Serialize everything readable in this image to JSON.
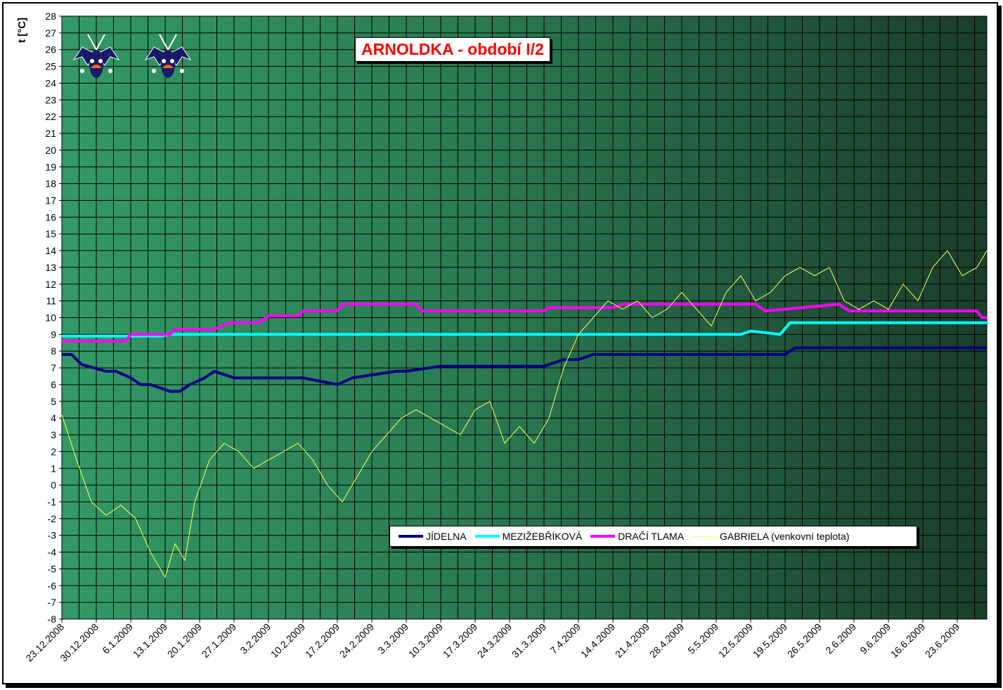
{
  "chart_data": {
    "type": "line",
    "title": "ARNOLDKA - období I/2",
    "ylabel": "t [°C]",
    "xlabel": "",
    "ylim": [
      -8,
      28
    ],
    "yticks": [
      -8,
      -7,
      -6,
      -5,
      -4,
      -3,
      -2,
      -1,
      0,
      1,
      2,
      3,
      4,
      5,
      6,
      7,
      8,
      9,
      10,
      11,
      12,
      13,
      14,
      15,
      16,
      17,
      18,
      19,
      20,
      21,
      22,
      23,
      24,
      25,
      26,
      27,
      28
    ],
    "xlim": [
      "2008-12-23",
      "2009-06-29"
    ],
    "categories": [
      "23.12.2008",
      "30.12.2008",
      "6.1.2009",
      "13.1.2009",
      "20.1.2009",
      "27.1.2009",
      "3.2.2009",
      "10.2.2009",
      "17.2.2009",
      "24.2.2009",
      "3.3.2009",
      "10.3.2009",
      "17.3.2009",
      "24.3.2009",
      "31.3.2009",
      "7.4.2009",
      "14.4.2009",
      "21.4.2009",
      "28.4.2009",
      "5.5.2009",
      "12.5.2009",
      "19.5.2009",
      "26.5.2009",
      "2.6.2009",
      "9.6.2009",
      "16.6.2009",
      "23.6.2009"
    ],
    "grid": true,
    "legend_position": "bottom-right",
    "series": [
      {
        "name": "JÍDELNA",
        "color": "#000080",
        "x": [
          "2008-12-23",
          "2008-12-25",
          "2008-12-27",
          "2009-01-01",
          "2009-01-03",
          "2009-01-06",
          "2009-01-08",
          "2009-01-10",
          "2009-01-14",
          "2009-01-16",
          "2009-01-18",
          "2009-01-21",
          "2009-01-23",
          "2009-01-27",
          "2009-02-03",
          "2009-02-10",
          "2009-02-17",
          "2009-02-20",
          "2009-03-01",
          "2009-03-03",
          "2009-03-10",
          "2009-03-31",
          "2009-04-04",
          "2009-04-07",
          "2009-04-10",
          "2009-05-01",
          "2009-05-19",
          "2009-05-21",
          "2009-06-29"
        ],
        "values": [
          7.8,
          7.8,
          7.2,
          6.8,
          6.8,
          6.4,
          6.0,
          6.0,
          5.6,
          5.6,
          6.0,
          6.4,
          6.8,
          6.4,
          6.4,
          6.4,
          6.0,
          6.4,
          6.8,
          6.8,
          7.1,
          7.1,
          7.5,
          7.5,
          7.8,
          7.8,
          7.8,
          8.2,
          8.2
        ]
      },
      {
        "name": "MEZIŽEBŘÍKOVÁ",
        "color": "#00ffff",
        "x": [
          "2008-12-23",
          "2009-01-12",
          "2009-01-14",
          "2009-05-10",
          "2009-05-12",
          "2009-05-18",
          "2009-05-20",
          "2009-06-29"
        ],
        "values": [
          8.9,
          8.9,
          9.0,
          9.0,
          9.2,
          9.0,
          9.7,
          9.7
        ]
      },
      {
        "name": "DRAČÍ TLAMA",
        "color": "#ff00ff",
        "x": [
          "2008-12-23",
          "2009-01-05",
          "2009-01-06",
          "2009-01-14",
          "2009-01-15",
          "2009-01-23",
          "2009-01-26",
          "2009-02-01",
          "2009-02-03",
          "2009-02-09",
          "2009-02-10",
          "2009-02-17",
          "2009-02-18",
          "2009-03-05",
          "2009-03-06",
          "2009-03-31",
          "2009-04-01",
          "2009-04-14",
          "2009-04-16",
          "2009-05-13",
          "2009-05-15",
          "2009-05-30",
          "2009-06-01",
          "2009-06-27",
          "2009-06-28",
          "2009-06-29"
        ],
        "values": [
          8.6,
          8.6,
          9.0,
          9.0,
          9.3,
          9.3,
          9.7,
          9.7,
          10.1,
          10.1,
          10.4,
          10.4,
          10.8,
          10.8,
          10.4,
          10.4,
          10.6,
          10.6,
          10.8,
          10.8,
          10.4,
          10.8,
          10.4,
          10.4,
          10.0,
          10.0
        ]
      },
      {
        "name": "GABRIELA (venkovní teplota)",
        "color": "#ffff66",
        "x": [
          "2008-12-23",
          "2008-12-26",
          "2008-12-29",
          "2009-01-01",
          "2009-01-04",
          "2009-01-07",
          "2009-01-10",
          "2009-01-13",
          "2009-01-15",
          "2009-01-17",
          "2009-01-19",
          "2009-01-22",
          "2009-01-25",
          "2009-01-28",
          "2009-01-31",
          "2009-02-03",
          "2009-02-06",
          "2009-02-09",
          "2009-02-12",
          "2009-02-15",
          "2009-02-18",
          "2009-02-21",
          "2009-02-24",
          "2009-02-27",
          "2009-03-02",
          "2009-03-05",
          "2009-03-08",
          "2009-03-11",
          "2009-03-14",
          "2009-03-17",
          "2009-03-20",
          "2009-03-23",
          "2009-03-26",
          "2009-03-29",
          "2009-04-01",
          "2009-04-04",
          "2009-04-07",
          "2009-04-10",
          "2009-04-13",
          "2009-04-16",
          "2009-04-19",
          "2009-04-22",
          "2009-04-25",
          "2009-04-28",
          "2009-05-01",
          "2009-05-04",
          "2009-05-07",
          "2009-05-10",
          "2009-05-13",
          "2009-05-16",
          "2009-05-19",
          "2009-05-22",
          "2009-05-25",
          "2009-05-28",
          "2009-05-31",
          "2009-06-03",
          "2009-06-06",
          "2009-06-09",
          "2009-06-12",
          "2009-06-15",
          "2009-06-18",
          "2009-06-21",
          "2009-06-24",
          "2009-06-27",
          "2009-06-29"
        ],
        "values": [
          4.2,
          1.5,
          -1.0,
          -1.8,
          -1.2,
          -2.0,
          -4.0,
          -5.5,
          -3.5,
          -4.5,
          -1.0,
          1.5,
          2.5,
          2.0,
          1.0,
          1.5,
          2.0,
          2.5,
          1.5,
          0.0,
          -1.0,
          0.5,
          2.0,
          3.0,
          4.0,
          4.5,
          4.0,
          3.5,
          3.0,
          4.5,
          5.0,
          2.5,
          3.5,
          2.5,
          4.0,
          7.0,
          9.0,
          10.0,
          11.0,
          10.5,
          11.0,
          10.0,
          10.5,
          11.5,
          10.5,
          9.5,
          11.5,
          12.5,
          11.0,
          11.5,
          12.5,
          13.0,
          12.5,
          13.0,
          11.0,
          10.5,
          11.0,
          10.5,
          12.0,
          11.0,
          13.0,
          14.0,
          12.5,
          13.0,
          14.0
        ]
      }
    ]
  }
}
